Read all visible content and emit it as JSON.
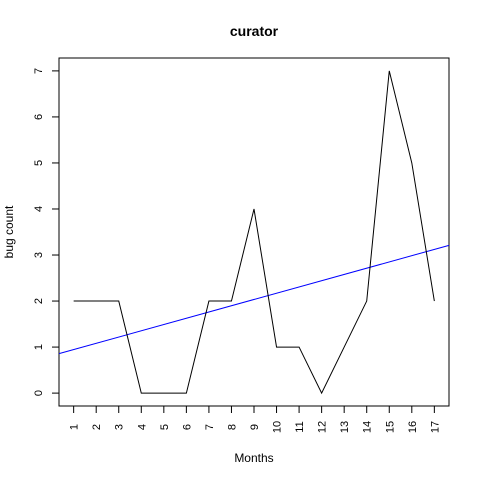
{
  "chart_data": {
    "type": "line",
    "title": "curator",
    "xlabel": "Months",
    "ylabel": "bug count",
    "x": [
      1,
      2,
      3,
      4,
      5,
      6,
      7,
      8,
      9,
      10,
      11,
      12,
      13,
      14,
      15,
      16,
      17
    ],
    "x_tick_labels": [
      "1",
      "2",
      "3",
      "4",
      "5",
      "6",
      "7",
      "8",
      "9",
      "10",
      "11",
      "12",
      "13",
      "14",
      "15",
      "16",
      "17"
    ],
    "y_ticks": [
      "0",
      "1",
      "2",
      "3",
      "4",
      "5",
      "6",
      "7"
    ],
    "xlim": [
      0.35,
      17.65
    ],
    "ylim": [
      -0.28,
      7.28
    ],
    "series": [
      {
        "values": [
          2,
          2,
          2,
          0,
          0,
          0,
          2,
          2,
          4,
          1,
          1,
          0,
          1,
          2,
          7,
          5,
          2
        ],
        "color": "#000000"
      }
    ],
    "trend_line": {
      "type": "linear-fit",
      "color": "#0000ff",
      "intercept": 0.81,
      "slope": 0.136
    },
    "grid": false,
    "legend": "none"
  }
}
